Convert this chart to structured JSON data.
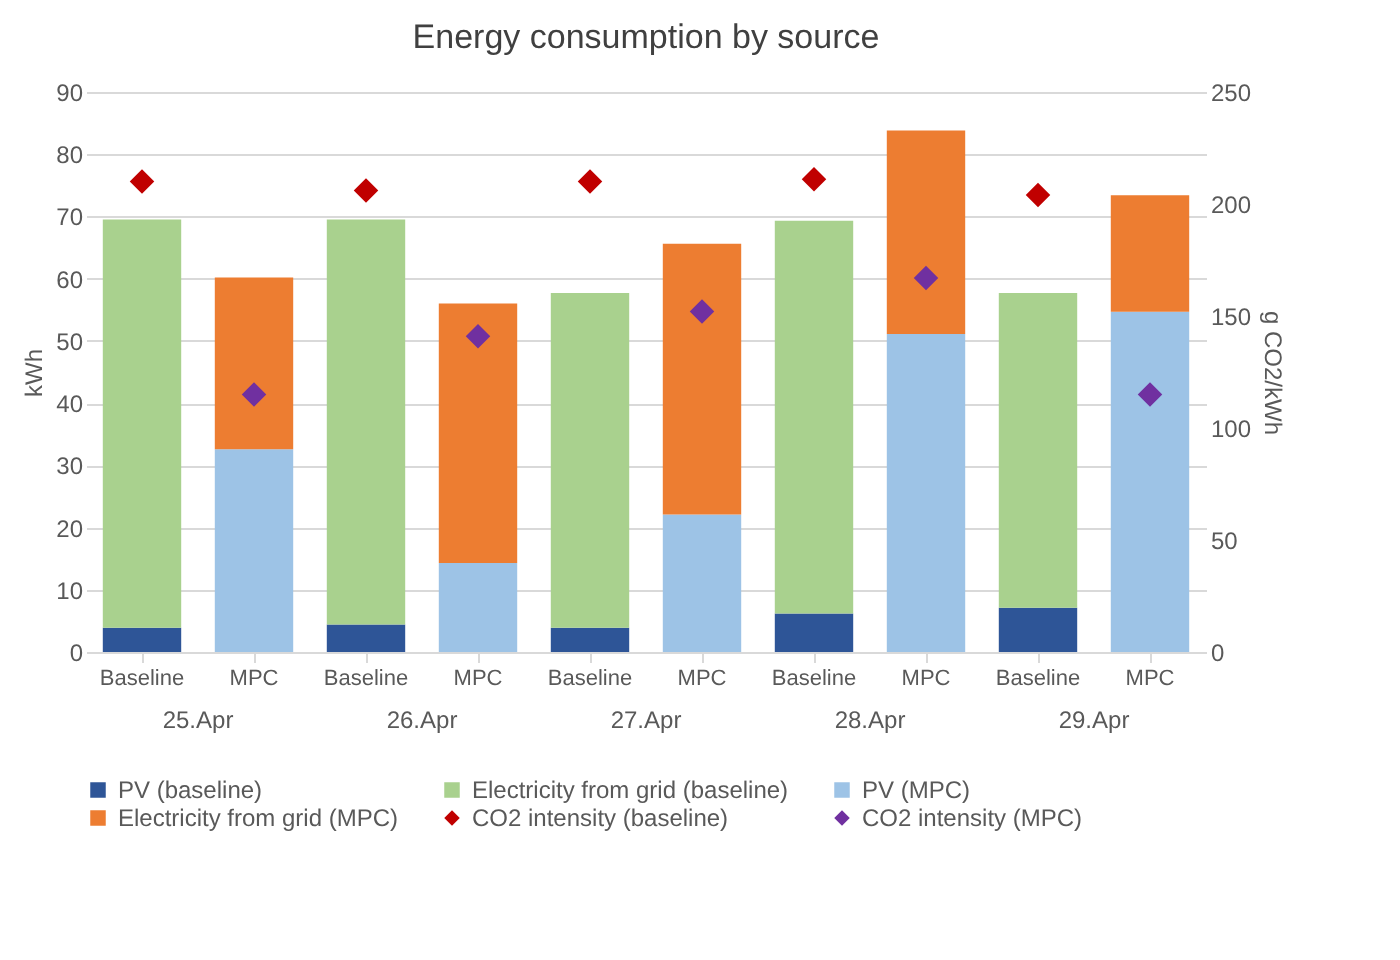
{
  "chart_data": {
    "type": "bar",
    "title": "Energy consumption by source",
    "ylabel": "kWh",
    "y2label": "g CO2/kWh",
    "categories": [
      "Baseline",
      "MPC",
      "Baseline",
      "MPC",
      "Baseline",
      "MPC",
      "Baseline",
      "MPC",
      "Baseline",
      "MPC"
    ],
    "annotations": [
      "25.Apr",
      "26.Apr",
      "27.Apr",
      "28.Apr",
      "29.Apr"
    ],
    "stacked": true,
    "grid": "y",
    "legend": "bottom",
    "marker": "diamond",
    "ylim": [
      0,
      90
    ],
    "yticks": [
      0,
      10,
      20,
      30,
      40,
      50,
      60,
      70,
      80,
      90
    ],
    "y2lim": [
      0,
      250
    ],
    "y2ticks": [
      0,
      50,
      100,
      150,
      200,
      250
    ],
    "series": [
      {
        "name": "PV (baseline)",
        "color": "#2e5597",
        "values": [
          3.9,
          null,
          4.4,
          null,
          3.9,
          null,
          6.2,
          null,
          7.1,
          null
        ]
      },
      {
        "name": "Electricity from grid (baseline)",
        "color": "#a9d18e",
        "values": [
          65.6,
          null,
          65.1,
          null,
          53.8,
          null,
          63.1,
          null,
          50.6,
          null
        ]
      },
      {
        "name": "PV (MPC)",
        "color": "#9dc3e6",
        "values": [
          null,
          32.6,
          null,
          14.3,
          null,
          22.1,
          null,
          51.1,
          null,
          54.7
        ]
      },
      {
        "name": "Electricity from grid (MPC)",
        "color": "#ed7d31",
        "values": [
          null,
          27.6,
          null,
          41.7,
          null,
          43.5,
          null,
          32.7,
          null,
          18.7
        ]
      },
      {
        "name": "CO2 intensity (baseline)",
        "color": "#c00000",
        "type": "scatter",
        "axis": "y2",
        "values": [
          210,
          null,
          206,
          null,
          210,
          null,
          211,
          null,
          204,
          null
        ]
      },
      {
        "name": "CO2 intensity (MPC)",
        "color": "#7030a0",
        "type": "scatter",
        "axis": "y2",
        "values": [
          null,
          115,
          null,
          141,
          null,
          152,
          null,
          167,
          null,
          115
        ]
      }
    ]
  }
}
